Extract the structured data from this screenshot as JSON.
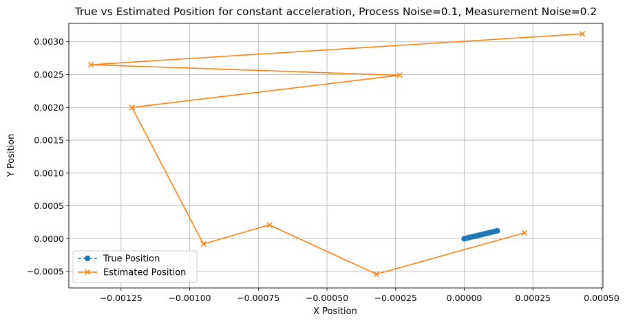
{
  "chart_data": {
    "type": "line",
    "title": "True vs Estimated Position for constant acceleration, Process Noise=0.1, Measurement Noise=0.2",
    "xlabel": "X Position",
    "ylabel": "Y Position",
    "xlim": [
      -0.00144,
      0.000505
    ],
    "ylim": [
      -0.00075,
      0.00328
    ],
    "x_ticks": [
      -0.00125,
      -0.001,
      -0.00075,
      -0.0005,
      -0.00025,
      0,
      0.00025,
      0.0005
    ],
    "x_tick_labels": [
      "−0.00125",
      "−0.00100",
      "−0.00075",
      "−0.00050",
      "−0.00025",
      "0.00000",
      "0.00025",
      "0.00050"
    ],
    "y_ticks": [
      -0.0005,
      0,
      0.0005,
      0.001,
      0.0015,
      0.002,
      0.0025,
      0.003
    ],
    "y_tick_labels": [
      "−0.0005",
      "0.0000",
      "0.0005",
      "0.0010",
      "0.0015",
      "0.0020",
      "0.0025",
      "0.0030"
    ],
    "grid": true,
    "legend_position": "lower-left",
    "series": [
      {
        "name": "True Position",
        "color": "#1f77b4",
        "marker": "circle",
        "linestyle": "dashed",
        "x": [
          0.0,
          1e-05,
          2e-05,
          3e-05,
          4e-05,
          5e-05,
          6e-05,
          7e-05,
          8e-05,
          9e-05,
          0.0001,
          0.00011,
          0.00012
        ],
        "y": [
          0.0,
          1e-05,
          2e-05,
          3e-05,
          4e-05,
          5e-05,
          6e-05,
          7e-05,
          8e-05,
          9e-05,
          0.0001,
          0.00011,
          0.00012
        ]
      },
      {
        "name": "Estimated Position",
        "color": "#ff7f0e",
        "marker": "x",
        "linestyle": "solid",
        "x": [
          0.00022,
          -0.00032,
          -0.00071,
          -0.00095,
          -0.00121,
          -0.000235,
          -0.00136,
          0.00043
        ],
        "y": [
          9e-05,
          -0.00054,
          0.00021,
          -8e-05,
          0.002,
          0.00249,
          0.00265,
          0.00312
        ]
      }
    ]
  }
}
